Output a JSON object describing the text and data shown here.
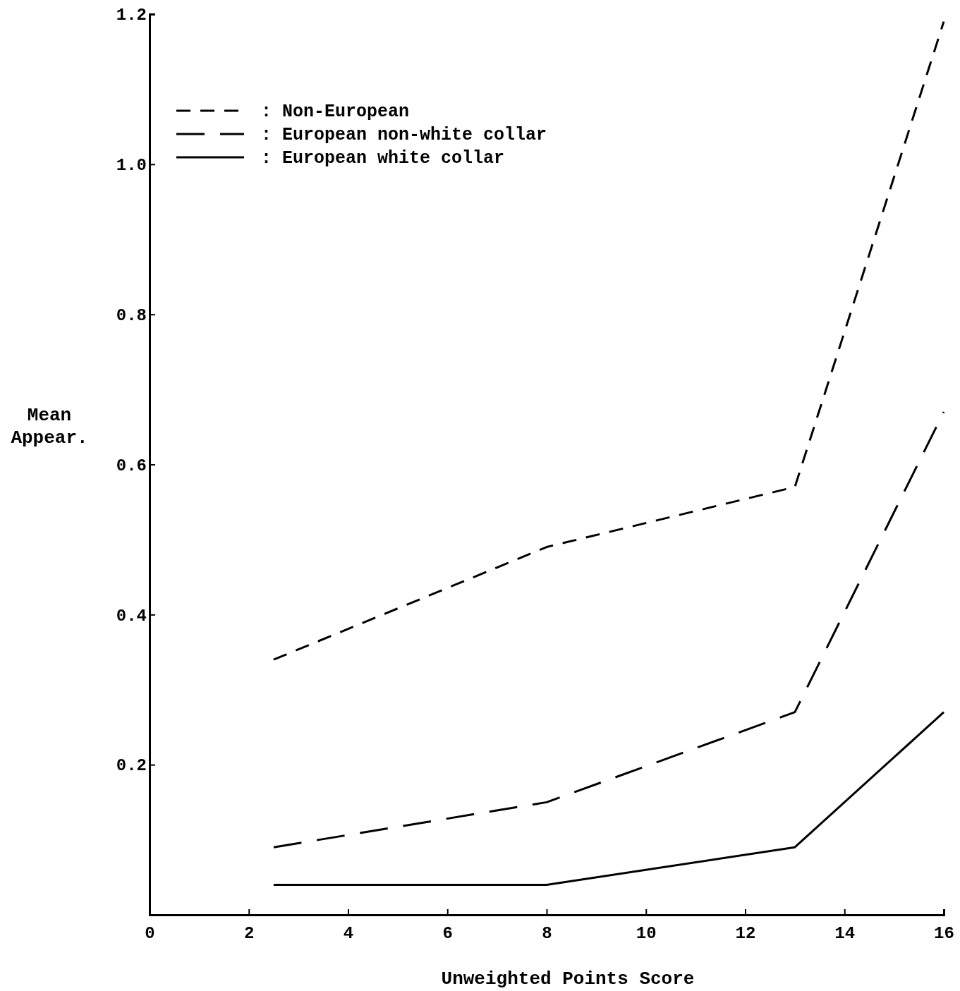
{
  "chart_data": {
    "type": "line",
    "xlabel": "Unweighted Points Score",
    "ylabel": "Mean Appear.",
    "xlim": [
      0,
      16
    ],
    "xticks": [
      0,
      2,
      4,
      6,
      8,
      10,
      12,
      14,
      16
    ],
    "ylim": [
      0,
      1.2
    ],
    "yticks": [
      0.2,
      0.4,
      0.6,
      0.8,
      {
        "value": 1.0,
        "label": "1.0"
      },
      1.2
    ],
    "x": [
      2.5,
      8,
      13,
      16
    ],
    "legend": "top left",
    "grid": false,
    "marker": "none",
    "series": [
      {
        "name": ": Non-European",
        "color": "#000000",
        "line_style": "dashed",
        "values": [
          0.34,
          0.49,
          0.57,
          1.19
        ]
      },
      {
        "name": ": European non-white collar",
        "color": "#000000",
        "line_style": "longdash",
        "values": [
          0.09,
          0.15,
          0.27,
          0.67
        ]
      },
      {
        "name": ": European white collar",
        "color": "#000000",
        "line_style": "solid",
        "values": [
          0.04,
          0.04,
          0.09,
          0.27
        ]
      }
    ]
  }
}
